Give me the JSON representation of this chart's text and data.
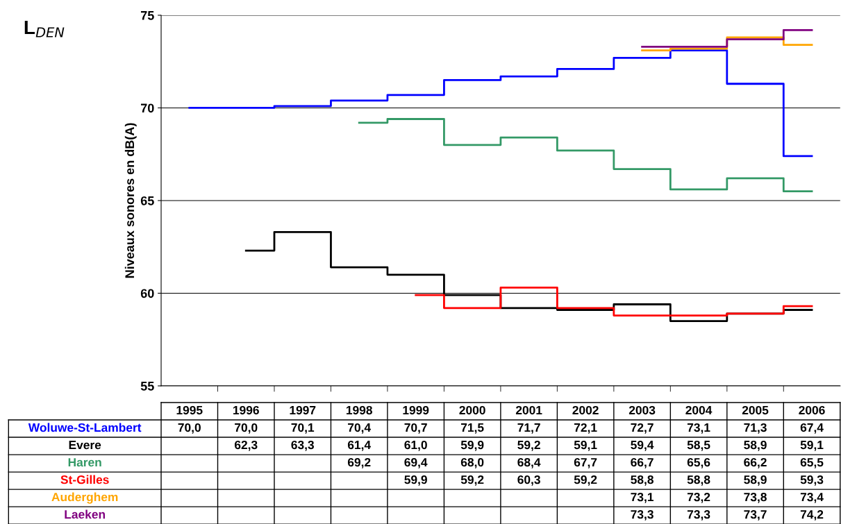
{
  "chart_data": {
    "type": "step",
    "title": "L$_{DEN}$",
    "ylabel": "Niveaux sonores en dB(A)",
    "categories": [
      "1995",
      "1996",
      "1997",
      "1998",
      "1999",
      "2000",
      "2001",
      "2002",
      "2003",
      "2004",
      "2005",
      "2006"
    ],
    "ylim": [
      55,
      75
    ],
    "yticks": [
      55,
      60,
      65,
      70,
      75
    ],
    "grid": "y",
    "legend": false,
    "series": [
      {
        "name": "Woluwe-St-Lambert",
        "color": "#0000ff",
        "values": [
          70.0,
          70.0,
          70.1,
          70.4,
          70.7,
          71.5,
          71.7,
          72.1,
          72.7,
          73.1,
          71.3,
          67.4
        ],
        "value_labels": [
          "70,0",
          "70,0",
          "70,1",
          "70,4",
          "70,7",
          "71,5",
          "71,7",
          "72,1",
          "72,7",
          "73,1",
          "71,3",
          "67,4"
        ]
      },
      {
        "name": "Evere",
        "color": "#000000",
        "values": [
          null,
          62.3,
          63.3,
          61.4,
          61.0,
          59.9,
          59.2,
          59.1,
          59.4,
          58.5,
          58.9,
          59.1
        ],
        "value_labels": [
          null,
          "62,3",
          "63,3",
          "61,4",
          "61,0",
          "59,9",
          "59,2",
          "59,1",
          "59,4",
          "58,5",
          "58,9",
          "59,1"
        ]
      },
      {
        "name": "Haren",
        "color": "#339966",
        "values": [
          null,
          null,
          null,
          69.2,
          69.4,
          68.0,
          68.4,
          67.7,
          66.7,
          65.6,
          66.2,
          65.5
        ],
        "value_labels": [
          null,
          null,
          null,
          "69,2",
          "69,4",
          "68,0",
          "68,4",
          "67,7",
          "66,7",
          "65,6",
          "66,2",
          "65,5"
        ]
      },
      {
        "name": "St-Gilles",
        "color": "#ff0000",
        "values": [
          null,
          null,
          null,
          null,
          59.9,
          59.2,
          60.3,
          59.2,
          58.8,
          58.8,
          58.9,
          59.3
        ],
        "value_labels": [
          null,
          null,
          null,
          null,
          "59,9",
          "59,2",
          "60,3",
          "59,2",
          "58,8",
          "58,8",
          "58,9",
          "59,3"
        ]
      },
      {
        "name": "Auderghem",
        "color": "#ffa500",
        "values": [
          null,
          null,
          null,
          null,
          null,
          null,
          null,
          null,
          73.1,
          73.2,
          73.8,
          73.4
        ],
        "value_labels": [
          null,
          null,
          null,
          null,
          null,
          null,
          null,
          null,
          "73,1",
          "73,2",
          "73,8",
          "73,4"
        ]
      },
      {
        "name": "Laeken",
        "color": "#800080",
        "values": [
          null,
          null,
          null,
          null,
          null,
          null,
          null,
          null,
          73.3,
          73.3,
          73.7,
          74.2
        ],
        "value_labels": [
          null,
          null,
          null,
          null,
          null,
          null,
          null,
          null,
          "73,3",
          "73,3",
          "73,7",
          "74,2"
        ]
      }
    ]
  }
}
